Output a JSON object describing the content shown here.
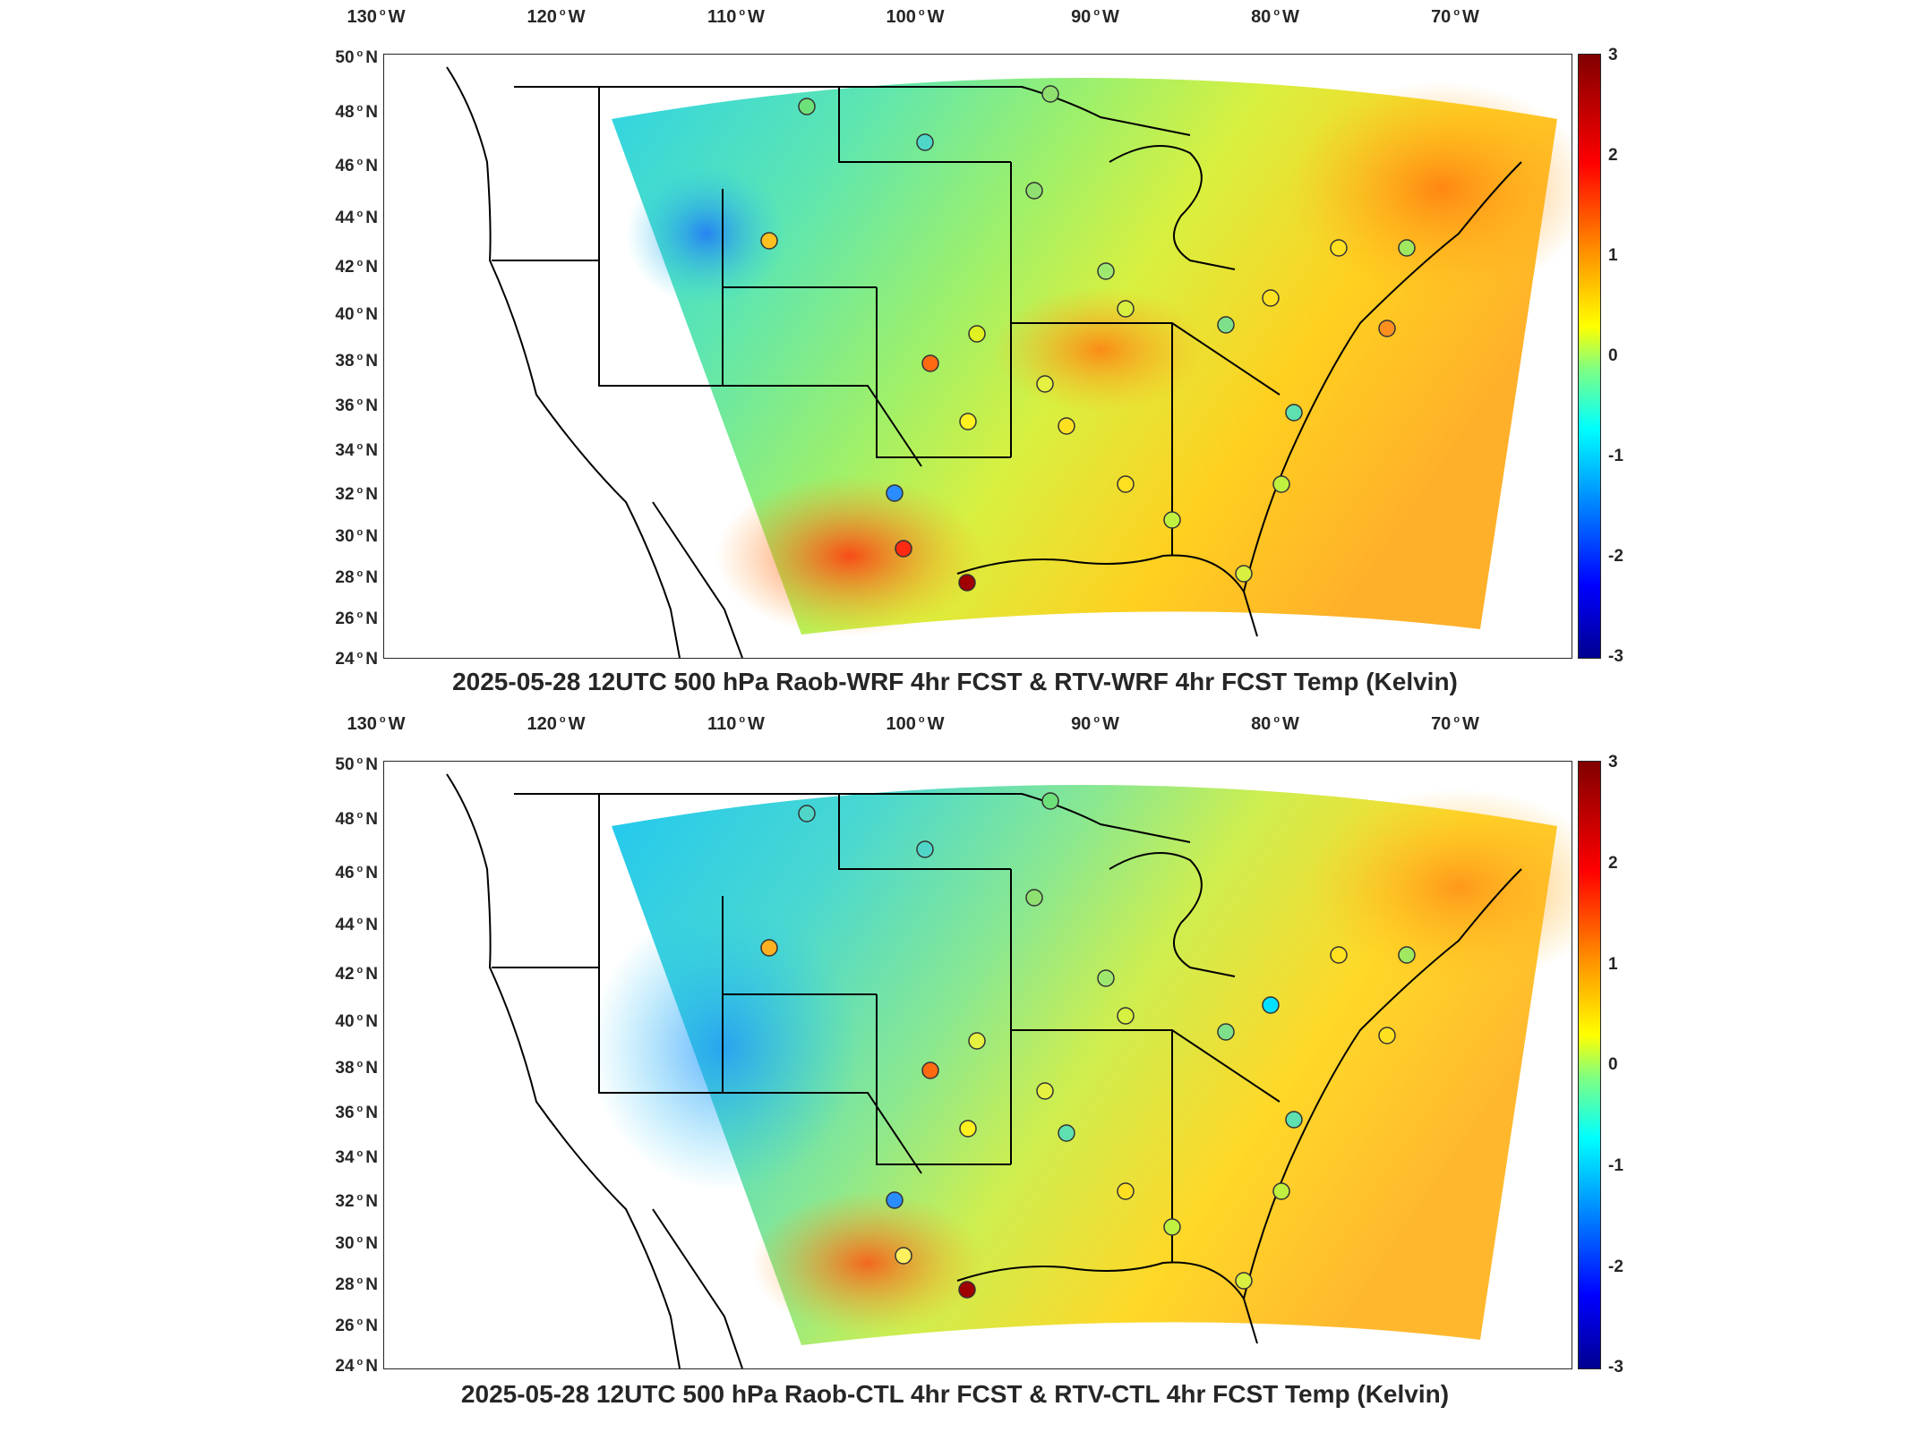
{
  "axes": {
    "lon_ticks": [
      "130",
      "120",
      "110",
      "100",
      "90",
      "80",
      "70"
    ],
    "lon_hemi": "W",
    "lat_ticks": [
      "50",
      "48",
      "46",
      "44",
      "42",
      "40",
      "38",
      "36",
      "34",
      "32",
      "30",
      "28",
      "26",
      "24"
    ],
    "lat_hemi": "N",
    "degree_symbol": "o"
  },
  "colorbar": {
    "ticks": [
      "3",
      "2",
      "1",
      "0",
      "-1",
      "-2",
      "-3"
    ],
    "range": [
      -3,
      3
    ],
    "colormap": "jet",
    "units": "Kelvin"
  },
  "panels": [
    {
      "title": "2025-05-28 12UTC 500 hPa Raob-WRF 4hr FCST & RTV-WRF 4hr FCST Temp (Kelvin)",
      "variant": "WRF"
    },
    {
      "title": "2025-05-28 12UTC 500 hPa Raob-CTL 4hr FCST & RTV-CTL 4hr FCST Temp (Kelvin)",
      "variant": "CTL"
    }
  ],
  "colors": {
    "background": "#ffffff",
    "boundary_line": "#000000",
    "text": "#262626"
  }
}
